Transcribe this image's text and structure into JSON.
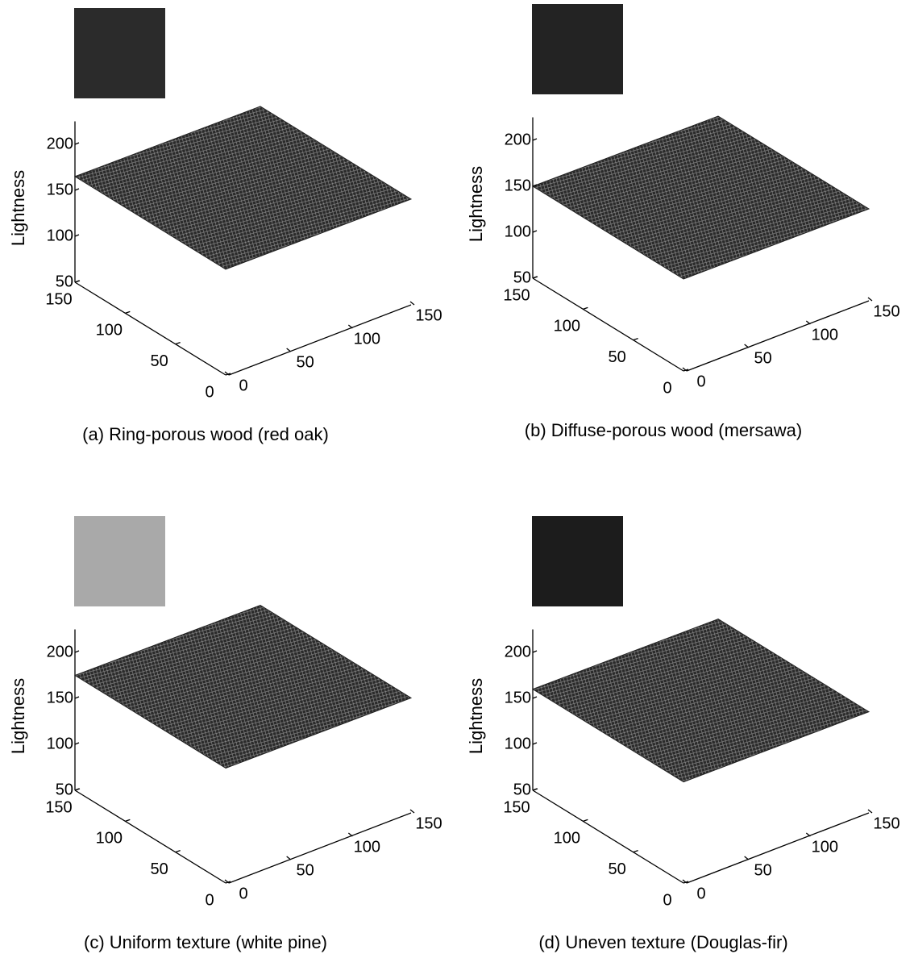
{
  "chart_data": [
    {
      "type": "surface3d",
      "caption": "(a) Ring-porous wood (red oak)",
      "zlabel": "Lightness",
      "xlim": [
        0,
        150
      ],
      "ylim": [
        0,
        150
      ],
      "zlim": [
        50,
        225
      ],
      "xticks": [
        0,
        50,
        100,
        150
      ],
      "yticks": [
        0,
        50,
        100,
        150
      ],
      "zticks": [
        50,
        100,
        150,
        200
      ],
      "swatch_color": "#2b2b2b",
      "surface_level": 165
    },
    {
      "type": "surface3d",
      "caption": "(b) Diffuse-porous wood (mersawa)",
      "zlabel": "Lightness",
      "xlim": [
        0,
        150
      ],
      "ylim": [
        0,
        150
      ],
      "zlim": [
        50,
        225
      ],
      "xticks": [
        0,
        50,
        100,
        150
      ],
      "yticks": [
        0,
        50,
        100,
        150
      ],
      "zticks": [
        50,
        100,
        150,
        200
      ],
      "swatch_color": "#232323",
      "surface_level": 150
    },
    {
      "type": "surface3d",
      "caption": "(c) Uniform texture (white pine)",
      "zlabel": "Lightness",
      "xlim": [
        0,
        150
      ],
      "ylim": [
        0,
        150
      ],
      "zlim": [
        50,
        225
      ],
      "xticks": [
        0,
        50,
        100,
        150
      ],
      "yticks": [
        0,
        50,
        100,
        150
      ],
      "zticks": [
        50,
        100,
        150,
        200
      ],
      "swatch_color": "#a9a9a9",
      "surface_level": 175
    },
    {
      "type": "surface3d",
      "caption": "(d) Uneven texture (Douglas-fir)",
      "zlabel": "Lightness",
      "xlim": [
        0,
        150
      ],
      "ylim": [
        0,
        150
      ],
      "zlim": [
        50,
        225
      ],
      "xticks": [
        0,
        50,
        100,
        150
      ],
      "yticks": [
        0,
        50,
        100,
        150
      ],
      "zticks": [
        50,
        100,
        150,
        200
      ],
      "swatch_color": "#1c1c1c",
      "surface_level": 160
    }
  ]
}
